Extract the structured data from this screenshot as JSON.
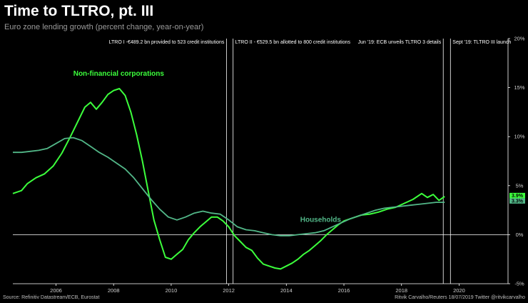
{
  "title": "Time to TLTRO, pt. III",
  "subtitle": "Euro zone lending growth (percent change, year-on-year)",
  "source": "Source: Refinitiv Datastream/ECB, Eurostat",
  "credit": "Ritvik Carvalho/Reuters 18/07/2019 Twitter @ritvikcarvalho",
  "colors": {
    "nfc": "#3cff3c",
    "households": "#52b788",
    "background": "#000000",
    "vline": "#ffffff"
  },
  "chart_data": {
    "type": "line",
    "title": "Time to TLTRO, pt. III",
    "xlabel": "",
    "ylabel": "",
    "xlim": [
      2004.5,
      2021.7
    ],
    "ylim": [
      -5,
      20
    ],
    "x_ticks": [
      2006,
      2008,
      2010,
      2012,
      2014,
      2016,
      2018,
      2020
    ],
    "x_tick_labels": [
      "2006",
      "2008",
      "2010",
      "2012",
      "2014",
      "2016",
      "2018",
      "2020"
    ],
    "y_ticks": [
      -5,
      0,
      5,
      10,
      15,
      20
    ],
    "y_tick_labels": [
      "-5%",
      "0%",
      "5%",
      "10%",
      "15%",
      "20%"
    ],
    "series": [
      {
        "name": "Non-financial corporations",
        "label": "Non-financial corporations",
        "color": "#3cff3c",
        "last_value": "3.9%",
        "x": [
          2004.5,
          2004.8,
          2005.0,
          2005.3,
          2005.6,
          2005.9,
          2006.2,
          2006.5,
          2006.8,
          2007.0,
          2007.2,
          2007.4,
          2007.6,
          2007.8,
          2008.0,
          2008.2,
          2008.4,
          2008.6,
          2008.8,
          2009.0,
          2009.2,
          2009.4,
          2009.6,
          2009.8,
          2010.0,
          2010.2,
          2010.4,
          2010.6,
          2010.8,
          2011.0,
          2011.2,
          2011.4,
          2011.6,
          2011.8,
          2012.0,
          2012.2,
          2012.4,
          2012.6,
          2012.8,
          2013.0,
          2013.2,
          2013.4,
          2013.6,
          2013.8,
          2014.0,
          2014.2,
          2014.4,
          2014.6,
          2014.8,
          2015.0,
          2015.2,
          2015.4,
          2015.6,
          2015.8,
          2016.0,
          2016.3,
          2016.6,
          2016.9,
          2017.2,
          2017.5,
          2017.8,
          2018.1,
          2018.4,
          2018.7,
          2018.9,
          2019.1,
          2019.3,
          2019.5
        ],
        "values": [
          4.2,
          4.5,
          5.2,
          5.8,
          6.2,
          7.0,
          8.3,
          10.0,
          11.8,
          13.0,
          13.5,
          12.8,
          13.5,
          14.3,
          14.7,
          14.9,
          14.2,
          12.5,
          10.2,
          7.5,
          4.5,
          1.5,
          -0.5,
          -2.3,
          -2.5,
          -2.0,
          -1.5,
          -0.5,
          0.2,
          0.8,
          1.3,
          1.8,
          1.8,
          1.4,
          0.8,
          -0.1,
          -0.7,
          -1.3,
          -1.6,
          -2.4,
          -3.0,
          -3.2,
          -3.4,
          -3.5,
          -3.2,
          -2.9,
          -2.5,
          -2.0,
          -1.6,
          -1.1,
          -0.6,
          0.0,
          0.5,
          1.0,
          1.4,
          1.7,
          2.0,
          2.1,
          2.3,
          2.6,
          2.8,
          3.2,
          3.6,
          4.2,
          3.8,
          4.1,
          3.5,
          3.9
        ]
      },
      {
        "name": "Households",
        "label": "Households",
        "color": "#52b788",
        "last_value": "3.3%",
        "x": [
          2004.5,
          2004.8,
          2005.1,
          2005.4,
          2005.7,
          2006.0,
          2006.3,
          2006.6,
          2006.9,
          2007.2,
          2007.5,
          2007.8,
          2008.1,
          2008.4,
          2008.7,
          2009.0,
          2009.3,
          2009.6,
          2009.9,
          2010.2,
          2010.5,
          2010.8,
          2011.1,
          2011.4,
          2011.7,
          2012.0,
          2012.3,
          2012.6,
          2012.9,
          2013.2,
          2013.5,
          2013.8,
          2014.1,
          2014.4,
          2014.7,
          2015.0,
          2015.3,
          2015.6,
          2015.9,
          2016.2,
          2016.5,
          2016.8,
          2017.1,
          2017.4,
          2017.7,
          2018.0,
          2018.3,
          2018.6,
          2018.9,
          2019.2,
          2019.5
        ],
        "values": [
          8.4,
          8.4,
          8.5,
          8.6,
          8.8,
          9.3,
          9.8,
          9.9,
          9.6,
          9.0,
          8.4,
          7.9,
          7.3,
          6.7,
          5.8,
          4.7,
          3.6,
          2.6,
          1.8,
          1.5,
          1.8,
          2.2,
          2.4,
          2.2,
          2.1,
          1.5,
          0.8,
          0.5,
          0.4,
          0.2,
          0.0,
          -0.1,
          -0.1,
          0.0,
          0.1,
          0.2,
          0.4,
          0.8,
          1.2,
          1.6,
          1.9,
          2.2,
          2.5,
          2.7,
          2.8,
          2.9,
          3.0,
          3.1,
          3.2,
          3.3,
          3.3
        ]
      }
    ],
    "annotations": [
      {
        "x": 2011.92,
        "text": "LTRO I -€489.2 bn provided to 523 credit institutions",
        "align": "left"
      },
      {
        "x": 2012.15,
        "text": "LTRO II - €529.5 bn allotted to 800 credit institutions",
        "align": "right"
      },
      {
        "x": 2019.45,
        "text": "Jun '19: ECB unveils TLTRO 3 details",
        "align": "left"
      },
      {
        "x": 2019.7,
        "text": "Sept '19: TLTRO III launch",
        "align": "right"
      }
    ]
  }
}
